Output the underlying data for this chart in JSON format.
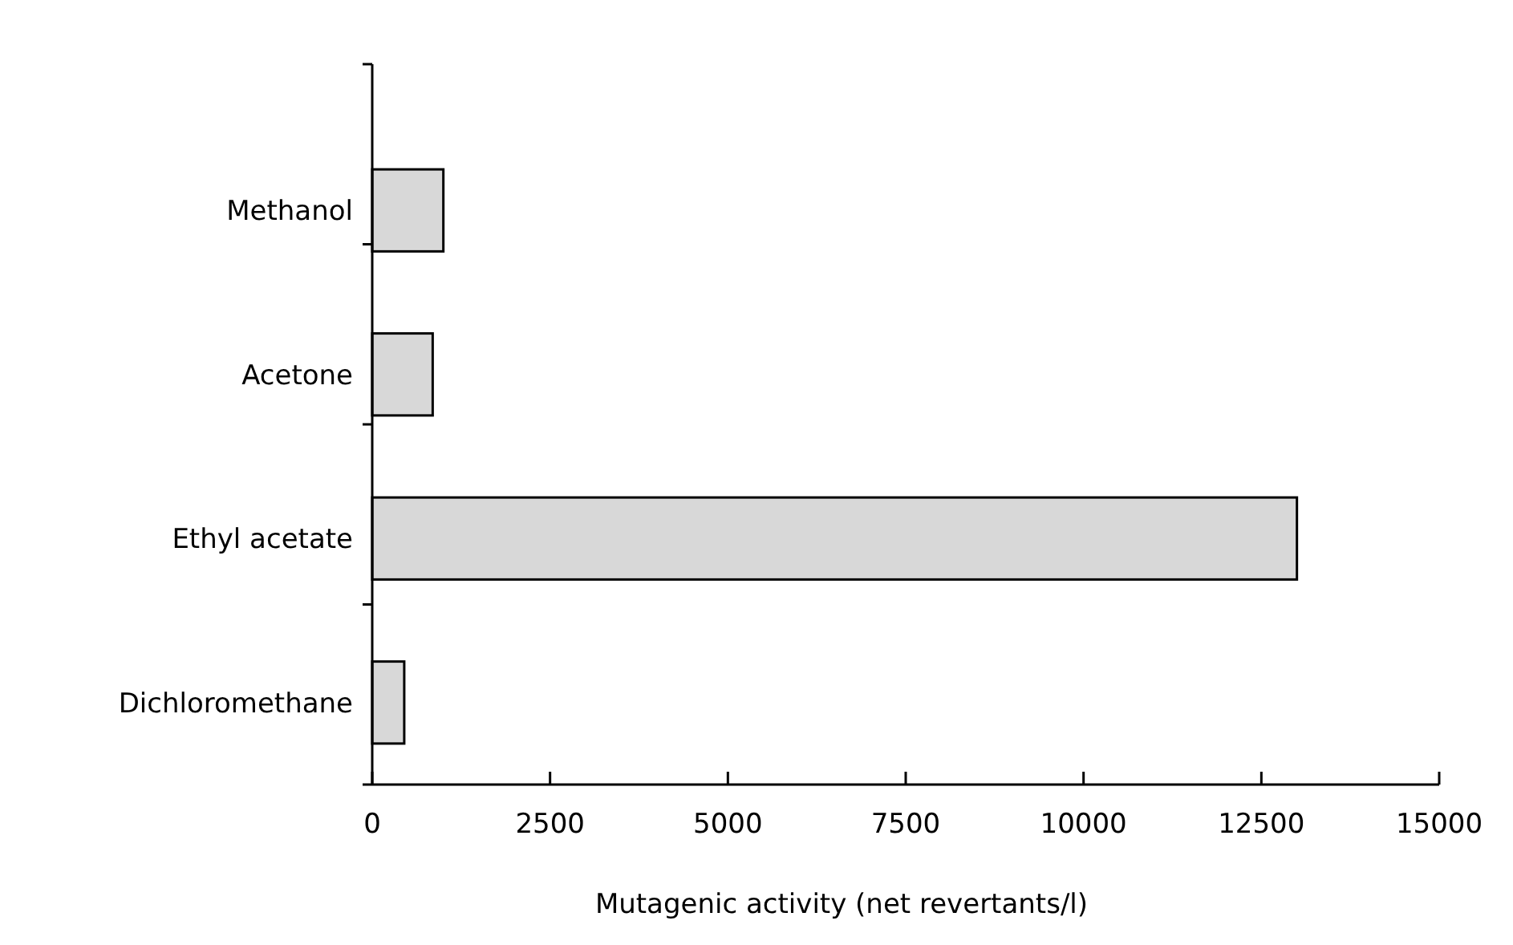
{
  "chart_data": {
    "type": "bar",
    "orientation": "horizontal",
    "xlabel": "Mutagenic activity (net revertants/l)",
    "categories": [
      "Methanol",
      "Acetone",
      "Ethyl acetate",
      "Dichloromethane"
    ],
    "values": [
      1000,
      850,
      13000,
      450
    ],
    "color": "#d8d8d8",
    "xlim": [
      0,
      15000
    ],
    "xticks": [
      0,
      2500,
      5000,
      7500,
      10000,
      12500,
      15000
    ],
    "grid": false
  }
}
